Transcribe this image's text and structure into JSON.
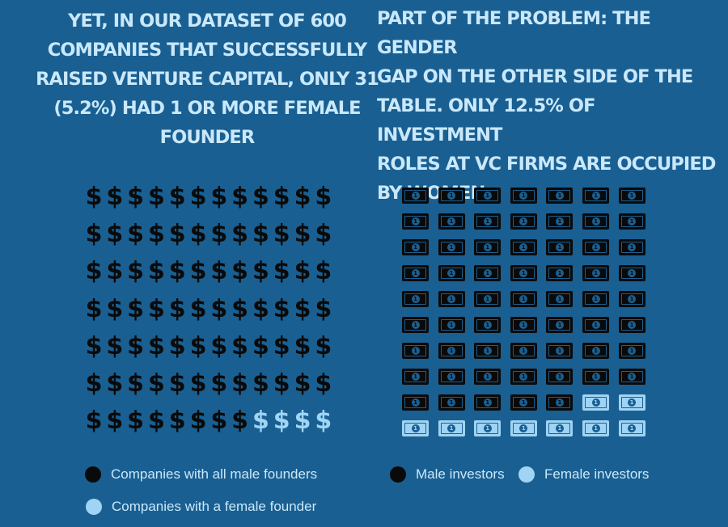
{
  "colors": {
    "background": "#1a5f91",
    "heading_text": "#c9e8fb",
    "male": "#0a0a0a",
    "female": "#9fd4f5"
  },
  "icons": {
    "left_unit": "dollar-sign",
    "right_unit": "dollar-bill"
  },
  "chart_data": [
    {
      "type": "pictogram",
      "title": "YET, IN OUR DATASET OF 600 COMPANIES THAT SUCCESSFULLY RAISED VENTURE CAPITAL, ONLY 31 (5.2%) HAD 1 OR MORE FEMALE FOUNDER",
      "rows": 7,
      "columns": 12,
      "series": [
        {
          "name": "Companies with all male founders",
          "count": 80,
          "color": "#0a0a0a"
        },
        {
          "name": "Companies with a female founder",
          "count": 4,
          "color": "#9fd4f5"
        }
      ],
      "legend": "bottom-left"
    },
    {
      "type": "pictogram",
      "title": "PART OF THE PROBLEM: THE GENDER GAP ON THE OTHER SIDE OF THE TABLE. ONLY 12.5% OF INVESTMENT ROLES AT VC FIRMS ARE OCCUPIED BY WOMEN",
      "rows": 10,
      "columns": 7,
      "series": [
        {
          "name": "Male investors",
          "count": 61,
          "color": "#0a0a0a"
        },
        {
          "name": "Female investors",
          "count": 9,
          "color": "#9fd4f5"
        }
      ],
      "legend": "bottom"
    }
  ],
  "left_panel": {
    "title_lines": "YET, IN OUR DATASET OF 600\nCOMPANIES THAT SUCCESSFULLY\nRAISED VENTURE CAPITAL, ONLY 31\n(5.2%) HAD 1 OR MORE FEMALE\nFOUNDER",
    "legend_male": "Companies with all male founders",
    "legend_female": "Companies with a female founder"
  },
  "right_panel": {
    "title_lines": "PART OF THE PROBLEM: THE GENDER\nGAP ON THE OTHER SIDE OF THE\nTABLE. ONLY 12.5% OF INVESTMENT\nROLES AT VC FIRMS ARE OCCUPIED\nBY WOMEN",
    "legend_male": "Male investors",
    "legend_female": "Female investors"
  },
  "symbols": {
    "dollar": "$",
    "bill_value": "1"
  }
}
